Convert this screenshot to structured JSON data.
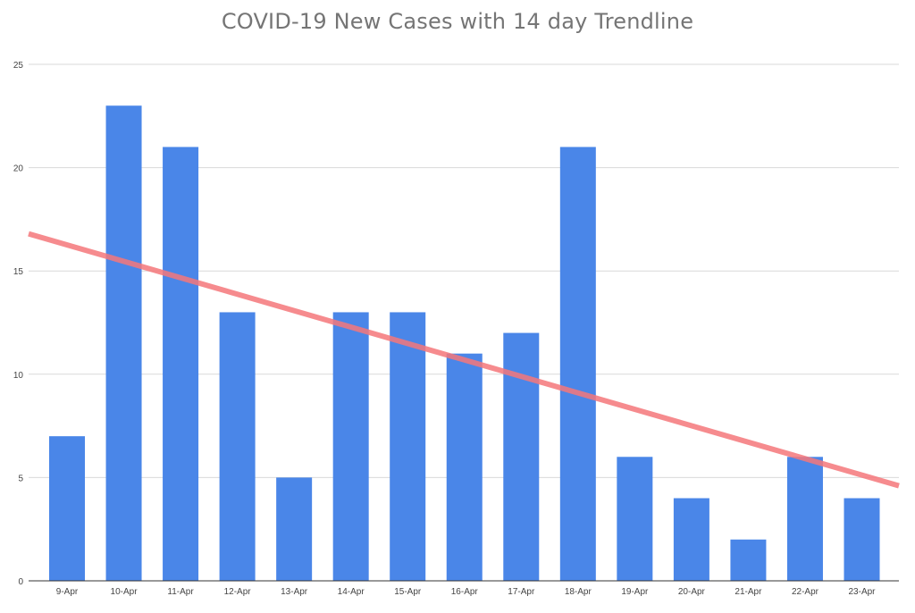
{
  "chart_data": {
    "type": "bar",
    "title": "COVID-19 New Cases with 14 day Trendline",
    "xlabel": "",
    "ylabel": "",
    "categories": [
      "9-Apr",
      "10-Apr",
      "11-Apr",
      "12-Apr",
      "13-Apr",
      "14-Apr",
      "15-Apr",
      "16-Apr",
      "17-Apr",
      "18-Apr",
      "19-Apr",
      "20-Apr",
      "21-Apr",
      "22-Apr",
      "23-Apr"
    ],
    "values": [
      7,
      23,
      21,
      13,
      5,
      13,
      13,
      11,
      12,
      21,
      6,
      4,
      2,
      6,
      4
    ],
    "ylim": [
      0,
      25
    ],
    "yticks": [
      0,
      5,
      10,
      15,
      20,
      25
    ],
    "grid": true,
    "legend": "none",
    "trendline": {
      "type": "linear",
      "start_value": 16.8,
      "end_value": 4.6
    },
    "colors": {
      "bar": "#4a86e8",
      "trendline": "#f4777a",
      "grid": "#d9d9d9",
      "axis": "#333333",
      "title": "#757575",
      "tick_text": "#444444"
    }
  }
}
